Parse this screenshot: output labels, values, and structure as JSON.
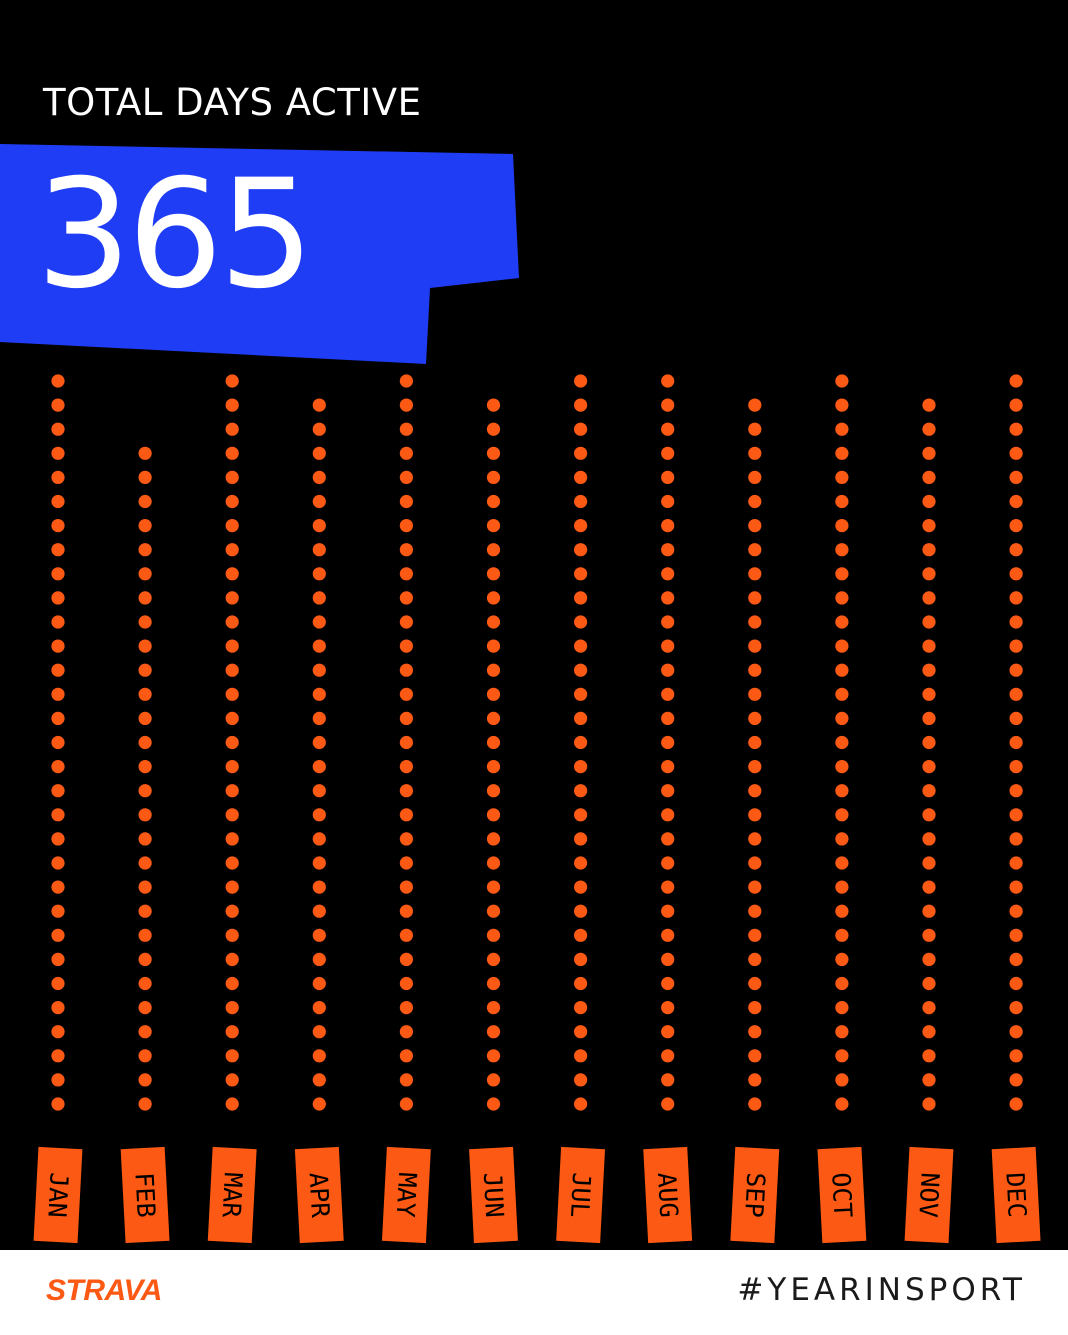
{
  "headline": "TOTAL DAYS ACTIVE",
  "stat_value": "365",
  "chart_data": {
    "type": "dot-column",
    "categories": [
      "JAN",
      "FEB",
      "MAR",
      "APR",
      "MAY",
      "JUN",
      "JUL",
      "AUG",
      "SEP",
      "OCT",
      "NOV",
      "DEC"
    ],
    "values": [
      31,
      28,
      31,
      30,
      31,
      30,
      31,
      31,
      30,
      31,
      30,
      31
    ],
    "title": "TOTAL DAYS ACTIVE",
    "xlabel": "",
    "ylabel": "",
    "grid": false,
    "legend": "none"
  },
  "footer": {
    "brand": "STRAVA",
    "hashtag": "#YEARINSPORT"
  },
  "colors": {
    "background": "#000000",
    "banner": "#1f3df5",
    "dots": "#fc5a14",
    "label_box": "#fc5a14",
    "label_text": "#000000",
    "brand": "#fc5a14",
    "footer_bg": "#ffffff"
  }
}
